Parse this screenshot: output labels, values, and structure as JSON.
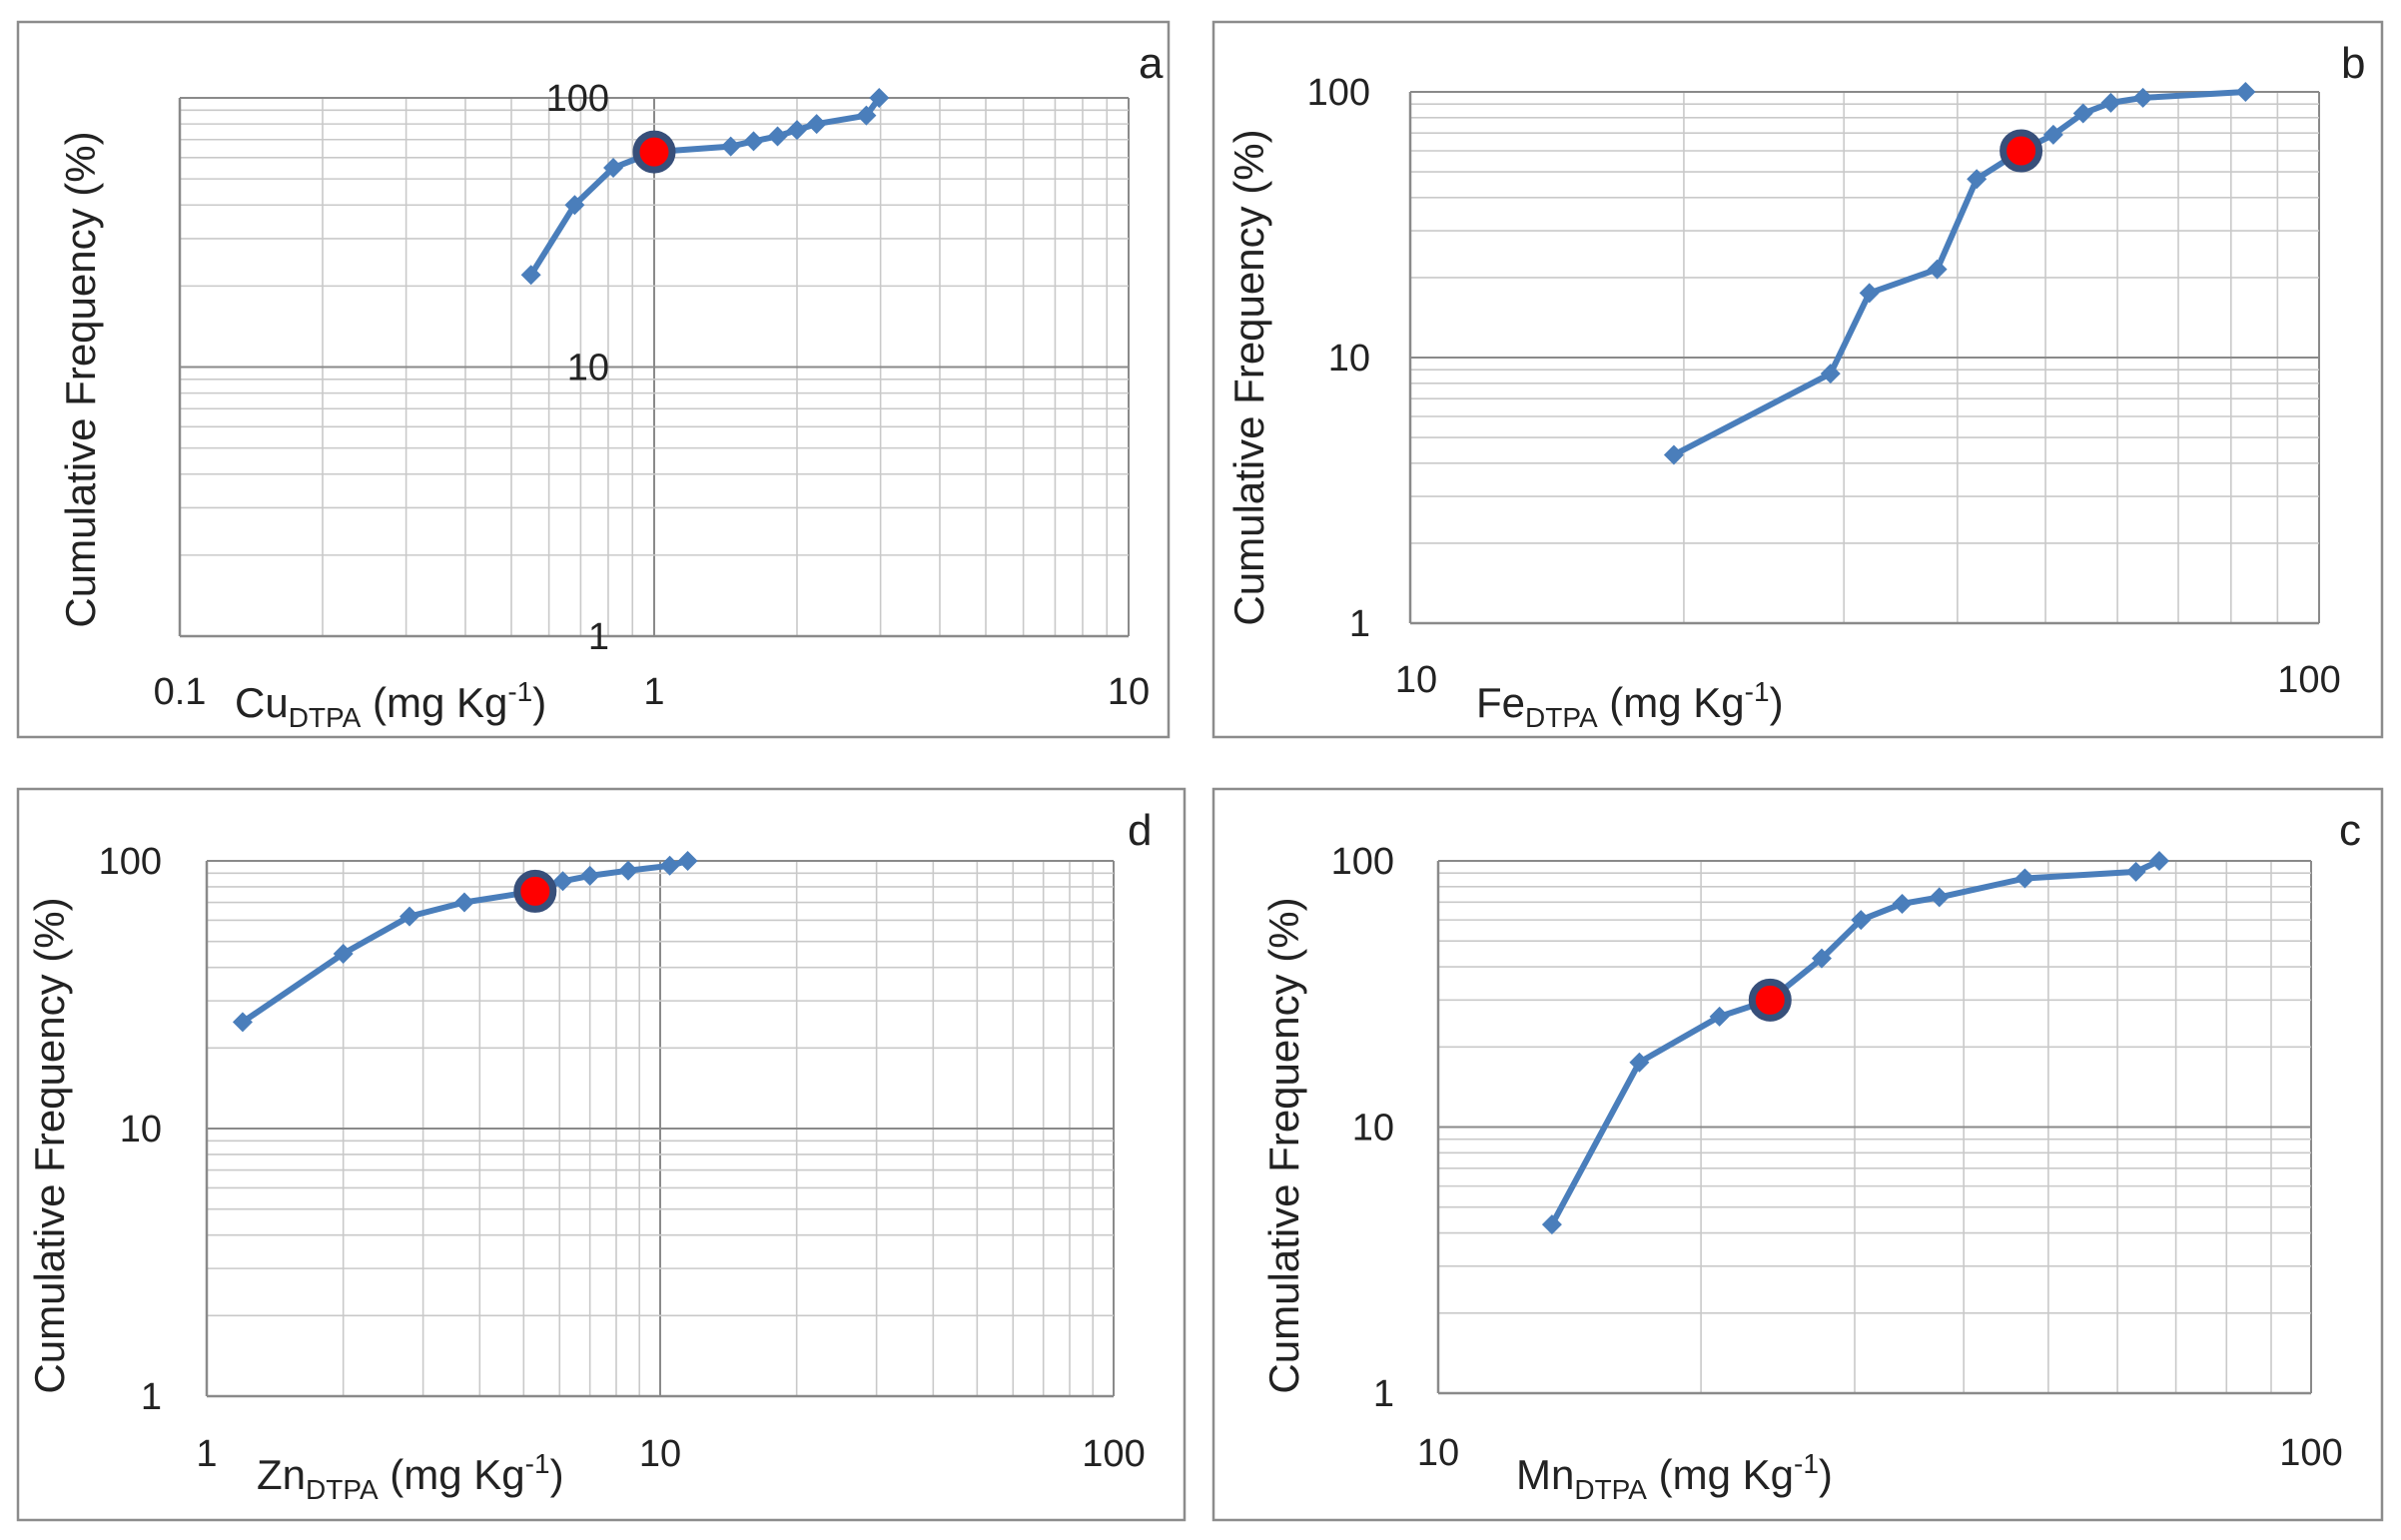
{
  "chart_data": [
    {
      "panel": "a",
      "type": "line",
      "scale": "log-log",
      "series_color": "#4a7ebb",
      "highlight_color": "#ff0000",
      "xlabel_main": "Cu",
      "xlabel_sub": "DTPA",
      "xlabel_unit_pre": " (mg Kg",
      "xlabel_unit_sup": "-1",
      "xlabel_unit_post": ")",
      "ylabel": "Cumulative Frequency (%)",
      "xlim": [
        0.1,
        10
      ],
      "ylim": [
        1,
        100
      ],
      "xticks": [
        "0.1",
        "1",
        "10"
      ],
      "yticks": [
        "1",
        "10",
        "100"
      ],
      "x": [
        0.55,
        0.68,
        0.82,
        1.0,
        1.45,
        1.62,
        1.82,
        2.0,
        2.2,
        2.8,
        2.98
      ],
      "y": [
        22,
        40,
        55,
        63,
        66,
        69,
        72,
        76,
        80,
        86,
        100
      ],
      "highlight": {
        "x": 1.0,
        "y": 63
      }
    },
    {
      "panel": "b",
      "type": "line",
      "scale": "log-log",
      "series_color": "#4a7ebb",
      "highlight_color": "#ff0000",
      "xlabel_main": "Fe",
      "xlabel_sub": "DTPA",
      "xlabel_unit_pre": " (mg Kg",
      "xlabel_unit_sup": "-1",
      "xlabel_unit_post": ")",
      "ylabel": "Cumulative Frequency (%)",
      "xlim": [
        10,
        100
      ],
      "ylim": [
        1,
        100
      ],
      "xticks": [
        "10",
        "100"
      ],
      "yticks": [
        "1",
        "10",
        "100"
      ],
      "x": [
        19.5,
        29,
        32,
        38,
        42,
        47,
        51,
        55,
        59,
        64,
        83
      ],
      "y": [
        4.3,
        8.7,
        17.5,
        21.5,
        47,
        60,
        69,
        83,
        91,
        95,
        100
      ],
      "highlight": {
        "x": 47,
        "y": 60
      }
    },
    {
      "panel": "d",
      "type": "line",
      "scale": "log-log",
      "series_color": "#4a7ebb",
      "highlight_color": "#ff0000",
      "xlabel_main": "Zn",
      "xlabel_sub": "DTPA",
      "xlabel_unit_pre": " (mg Kg",
      "xlabel_unit_sup": "-1",
      "xlabel_unit_post": ")",
      "ylabel": "Cumulative Frequency (%)",
      "xlim": [
        1,
        100
      ],
      "ylim": [
        1,
        100
      ],
      "xticks": [
        "1",
        "10",
        "100"
      ],
      "yticks": [
        "1",
        "10",
        "100"
      ],
      "x": [
        1.2,
        2.0,
        2.8,
        3.7,
        5.3,
        6.1,
        7.0,
        8.5,
        10.5,
        11.5
      ],
      "y": [
        25,
        45,
        62,
        70,
        77,
        84,
        88,
        92,
        96,
        100
      ],
      "highlight": {
        "x": 5.3,
        "y": 77
      }
    },
    {
      "panel": "c",
      "type": "line",
      "scale": "log-log",
      "series_color": "#4a7ebb",
      "highlight_color": "#ff0000",
      "xlabel_main": "Mn",
      "xlabel_sub": "DTPA",
      "xlabel_unit_pre": " (mg Kg",
      "xlabel_unit_sup": "-1",
      "xlabel_unit_post": ")",
      "ylabel": "Cumulative Frequency (%)",
      "xlim": [
        10,
        100
      ],
      "ylim": [
        1,
        100
      ],
      "xticks": [
        "10",
        "100"
      ],
      "yticks": [
        "1",
        "10",
        "100"
      ],
      "x": [
        13.5,
        17,
        21,
        24,
        27.5,
        30.5,
        34,
        37.5,
        47,
        63,
        67
      ],
      "y": [
        4.3,
        17.5,
        26,
        30,
        43,
        60,
        69,
        73,
        86,
        91,
        100
      ],
      "highlight": {
        "x": 24,
        "y": 30
      }
    }
  ]
}
